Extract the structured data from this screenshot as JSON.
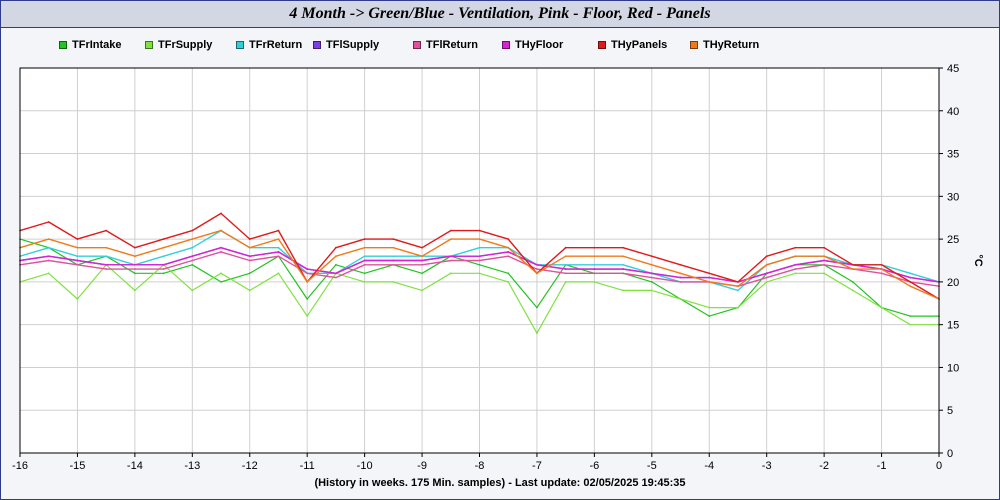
{
  "title": "4 Month -> Green/Blue - Ventilation, Pink - Floor, Red - Panels",
  "footer": "(History in weeks. 175 Min. samples) - Last update: 02/05/2025 19:45:35",
  "chart_data": {
    "type": "line",
    "title": "4 Month -> Green/Blue - Ventilation, Pink - Floor, Red - Panels",
    "xlabel": "(History in weeks. 175 Min. samples) - Last update: 02/05/2025 19:45:35",
    "ylabel": "°C",
    "xlim": [
      -16,
      0
    ],
    "ylim": [
      0,
      45
    ],
    "x_ticks": [
      "-16",
      "-15",
      "-14",
      "-13",
      "-12",
      "-11",
      "-10",
      "-9",
      "-8",
      "-7",
      "-6",
      "-5",
      "-4",
      "-3",
      "-2",
      "-1",
      "0"
    ],
    "y_ticks": [
      "0",
      "5",
      "10",
      "15",
      "20",
      "25",
      "30",
      "35",
      "40",
      "45"
    ],
    "grid": true,
    "y_axis_side": "right",
    "legend_position": "top",
    "x": [
      -16,
      -15.5,
      -15,
      -14.5,
      -14,
      -13.5,
      -13,
      -12.5,
      -12,
      -11.5,
      -11,
      -10.5,
      -10,
      -9.5,
      -9,
      -8.5,
      -8,
      -7.5,
      -7,
      -6.5,
      -6,
      -5.5,
      -5,
      -4.5,
      -4,
      -3.5,
      -3,
      -2.5,
      -2,
      -1.5,
      -1,
      -0.5,
      0
    ],
    "series": [
      {
        "name": "TFrIntake",
        "color": "#22c322",
        "values": [
          25,
          24,
          22,
          23,
          21,
          21,
          22,
          20,
          21,
          23,
          18,
          22,
          21,
          22,
          21,
          23,
          22,
          21,
          17,
          22,
          21,
          21,
          20,
          18,
          16,
          17,
          21,
          22,
          22,
          20,
          17,
          16,
          16
        ]
      },
      {
        "name": "TFrSupply",
        "color": "#7fe23f",
        "values": [
          20,
          21,
          18,
          22,
          19,
          22,
          19,
          21,
          19,
          21,
          16,
          21,
          20,
          20,
          19,
          21,
          21,
          20,
          14,
          20,
          20,
          19,
          19,
          18,
          17,
          17,
          20,
          21,
          21,
          19,
          17,
          15,
          15
        ]
      },
      {
        "name": "TFrReturn",
        "color": "#33cfd9",
        "values": [
          23,
          24,
          23,
          23,
          22,
          23,
          24,
          26,
          24,
          24,
          21,
          21,
          23,
          23,
          23,
          23,
          24,
          24,
          22,
          22,
          22,
          22,
          21,
          20,
          20,
          19,
          22,
          23,
          23,
          22,
          22,
          21,
          20
        ]
      },
      {
        "name": "TFlSupply",
        "color": "#7b3fe4",
        "values": [
          22.5,
          23,
          22.5,
          22,
          22,
          22,
          23,
          24,
          23,
          23.5,
          21.5,
          21,
          22.5,
          22.5,
          22.5,
          23,
          23,
          23.5,
          22,
          21.5,
          21.5,
          21.5,
          21,
          20.5,
          20.5,
          20,
          21,
          22,
          22.5,
          22,
          21.5,
          20.5,
          20
        ]
      },
      {
        "name": "TFlReturn",
        "color": "#e0509f",
        "values": [
          22,
          22.5,
          22,
          21.5,
          21.5,
          21.5,
          22.5,
          23.5,
          22.5,
          23,
          21,
          20.5,
          22,
          22,
          22,
          22.5,
          22.5,
          23,
          21.5,
          21,
          21,
          21,
          20.5,
          20,
          20,
          19.5,
          20.5,
          21.5,
          22,
          21.5,
          21,
          20,
          19.5
        ]
      },
      {
        "name": "THyFloor",
        "color": "#d623d6",
        "values": [
          22.5,
          23,
          22.5,
          22,
          22,
          22,
          23,
          24,
          23,
          23.5,
          21.5,
          21,
          22.5,
          22.5,
          22.5,
          23,
          23,
          23.5,
          22,
          21.5,
          21.5,
          21.5,
          21,
          20.5,
          20.5,
          20,
          21,
          22,
          22.5,
          22,
          21.5,
          20.5,
          20
        ]
      },
      {
        "name": "THyPanels",
        "color": "#e01a1a",
        "values": [
          26,
          27,
          25,
          26,
          24,
          25,
          26,
          28,
          25,
          26,
          20,
          24,
          25,
          25,
          24,
          26,
          26,
          25,
          21,
          24,
          24,
          24,
          23,
          22,
          21,
          20,
          23,
          24,
          24,
          22,
          22,
          20,
          18
        ]
      },
      {
        "name": "THyReturn",
        "color": "#f07a1a",
        "values": [
          24,
          25,
          24,
          24,
          23,
          24,
          25,
          26,
          24,
          25,
          20,
          23,
          24,
          24,
          23,
          25,
          25,
          24,
          21,
          23,
          23,
          23,
          22,
          21,
          20,
          19.5,
          22,
          23,
          23,
          21.5,
          21.5,
          19.5,
          18
        ]
      }
    ]
  }
}
